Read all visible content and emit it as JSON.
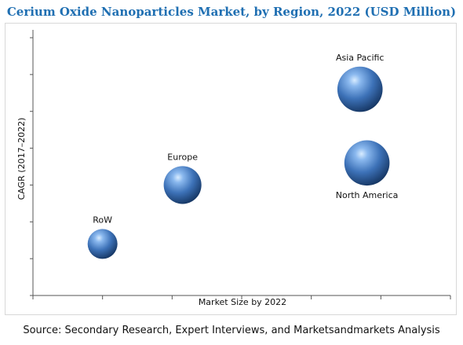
{
  "title": "Cerium Oxide Nanoparticles Market, by Region, 2022 (USD Million)",
  "source": "Source: Secondary Research, Expert Interviews, and Marketsandmarkets Analysis",
  "colors": {
    "title": "#1f6fb2",
    "bubble": "#3d72b8"
  },
  "chart_data": {
    "type": "scatter",
    "title": "Cerium Oxide Nanoparticles Market, by Region, 2022 (USD Million)",
    "xlabel": "Market Size by 2022",
    "ylabel": "CAGR (2017–2022)",
    "x_ticks": 6,
    "y_ticks": 7,
    "xlim": [
      0,
      6
    ],
    "ylim": [
      0,
      7
    ],
    "grid": false,
    "points": [
      {
        "label": "RoW",
        "x": 1.0,
        "y": 1.4,
        "size": 1.0,
        "label_position": "above"
      },
      {
        "label": "Europe",
        "x": 2.15,
        "y": 3.0,
        "size": 1.6,
        "label_position": "above"
      },
      {
        "label": "Asia Pacific",
        "x": 4.7,
        "y": 5.6,
        "size": 2.3,
        "label_position": "above"
      },
      {
        "label": "North America",
        "x": 4.8,
        "y": 3.6,
        "size": 2.3,
        "label_position": "below"
      }
    ]
  }
}
